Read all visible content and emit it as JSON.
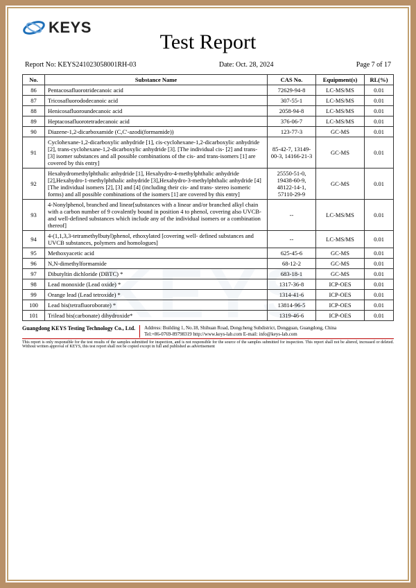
{
  "logo_text": "KEYS",
  "title": "Test Report",
  "report_no_label": "Report No: KEYS241023058001RH-03",
  "date_label": "Date: Oct. 28, 2024",
  "page_label": "Page 7 of 17",
  "columns": {
    "no": "No.",
    "substance": "Substance Name",
    "cas": "CAS No.",
    "equipment": "Equipment(s)",
    "rl": "RL(%)"
  },
  "rows": [
    {
      "no": "86",
      "sub": "Pentacosafluorotridecanoic acid",
      "cas": "72629-94-8",
      "eq": "LC-MS/MS",
      "rl": "0.01"
    },
    {
      "no": "87",
      "sub": "Tricosafluorododecanoic acid",
      "cas": "307-55-1",
      "eq": "LC-MS/MS",
      "rl": "0.01"
    },
    {
      "no": "88",
      "sub": "Henicosafluoroundecanoic acid",
      "cas": "2058-94-8",
      "eq": "LC-MS/MS",
      "rl": "0.01"
    },
    {
      "no": "89",
      "sub": "Heptacosafluorotetradecanoic acid",
      "cas": "376-06-7",
      "eq": "LC-MS/MS",
      "rl": "0.01"
    },
    {
      "no": "90",
      "sub": "Diazene-1,2-dicarboxamide (C,C'-azodi(formamide))",
      "cas": "123-77-3",
      "eq": "GC-MS",
      "rl": "0.01"
    },
    {
      "no": "91",
      "sub": "Cyclohexane-1,2-dicarboxylic anhydride [1], cis-cyclohexane-1,2-dicarboxylic anhydride [2], trans-cyclohexane-1,2-dicarboxylic anhydride [3]. [The individual cis- [2] and trans- [3] isomer substances and all possible combinations of the cis- and trans-isomers [1] are covered by this entry]",
      "cas": "85-42-7, 13149-00-3, 14166-21-3",
      "eq": "GC-MS",
      "rl": "0.01"
    },
    {
      "no": "92",
      "sub": "Hexahydromethylphthalic anhydride [1], Hexahydro-4-methylphthalic anhydride [2],Hexahydro-1-methylphthalic anhydride [3],Hexahydro-3-methylphthalic anhydride [4] [The individual isomers [2], [3] and [4] (including their cis- and trans- stereo isomeric forms) and all possible combinations of the isomers [1] are covered by this entry]",
      "cas": "25550-51-0, 19438-60-9, 48122-14-1, 57110-29-9",
      "eq": "GC-MS",
      "rl": "0.01"
    },
    {
      "no": "93",
      "sub": "4-Nonylphenol, branched and linear[substances with a linear and/or branched alkyl chain with a carbon number of 9 covalently bound in position 4 to phenol, covering also UVCB- and well-defined substances which include any of the individual isomers or a combination thereof]",
      "cas": "--",
      "eq": "LC-MS/MS",
      "rl": "0.01"
    },
    {
      "no": "94",
      "sub": "4-(1,1,3,3-tetramethylbutyl)phenol, ethoxylated [covering well- defined substances and UVCB substances, polymers and homologues]",
      "cas": "--",
      "eq": "LC-MS/MS",
      "rl": "0.01"
    },
    {
      "no": "95",
      "sub": "Methoxyacetic acid",
      "cas": "625-45-6",
      "eq": "GC-MS",
      "rl": "0.01"
    },
    {
      "no": "96",
      "sub": "N,N-dimethylformamide",
      "cas": "68-12-2",
      "eq": "GC-MS",
      "rl": "0.01"
    },
    {
      "no": "97",
      "sub": "Dibutyltin dichloride (DBTC) *",
      "cas": "683-18-1",
      "eq": "GC-MS",
      "rl": "0.01"
    },
    {
      "no": "98",
      "sub": "Lead monoxide (Lead oxide) *",
      "cas": "1317-36-8",
      "eq": "ICP-OES",
      "rl": "0.01"
    },
    {
      "no": "99",
      "sub": "Orange lead (Lead tetroxide) *",
      "cas": "1314-41-6",
      "eq": "ICP-OES",
      "rl": "0.01"
    },
    {
      "no": "100",
      "sub": "Lead bis(tetrafluoroborate) *",
      "cas": "13814-96-5",
      "eq": "ICP-OES",
      "rl": "0.01"
    },
    {
      "no": "101",
      "sub": "Trilead bis(carbonate) dihydroxide*",
      "cas": "1319-46-6",
      "eq": "ICP-OES",
      "rl": "0.01"
    }
  ],
  "footer": {
    "company": "Guangdong KEYS Testing Technology Co., Ltd.",
    "address": "Address: Building 1, No.18, Shihuan Road, Dongcheng Subdistrict, Dongguan, Guangdong, China",
    "tel": "Tel:+86-0769-89798319    http://www.keys-lab.com    E-mail: info@keys-lab.com",
    "disclaimer": "This report is only responsible for the test results of the samples submitted for inspection, and is not responsible for the source of the samples submitted for inspection. This report shall not be altered, increased or deleted. Without written approval of KEYS, this test report shall not be copied except in full and published as advertisement"
  },
  "watermark": "KEYS",
  "colors": {
    "border": "#b89068",
    "text": "#000000",
    "logo_blue": "#1e6fb8",
    "red_line": "#b00000",
    "watermark": "rgba(100,140,180,0.08)"
  }
}
